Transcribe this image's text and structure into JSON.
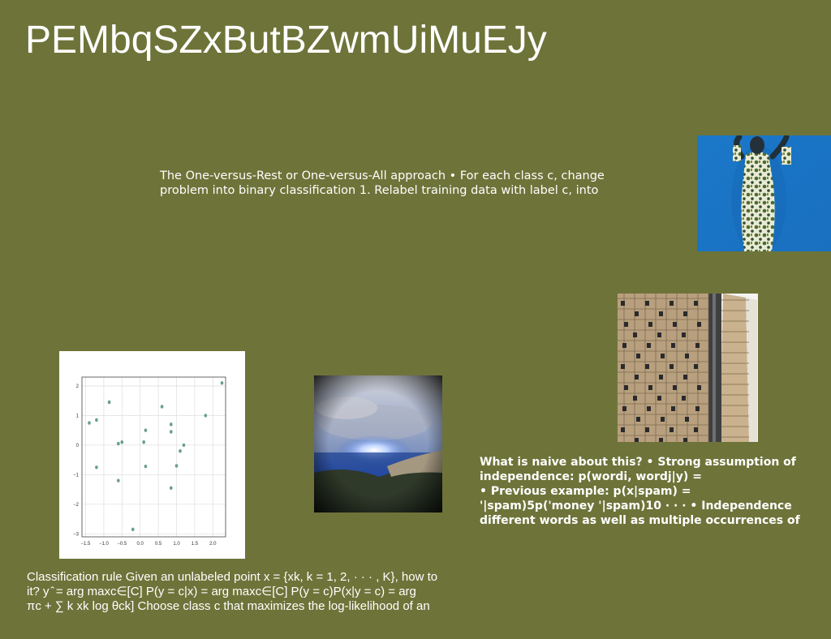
{
  "slide": {
    "title": "PEMbqSZxButBZwmUiMuEJy",
    "text_ovr": "The One-versus-Rest or One-versus-All approach • For each class c, change\nproblem into binary classification 1. Relabel training data with label c, into",
    "text_naive": "What is naive about this? • Strong assumption of\nindependence: p(wordi, wordj|y) =\n• Previous example: p(x|spam) =\n'|spam)5p('money '|spam)10 · · · • Independence\ndifferent words as well as multiple occurrences of",
    "text_rule": "Classification rule Given an unlabeled point x = {xk, k = 1, 2, · · · , K}, how to\nit? y ̂ = arg maxc∈[C] P(y = c|x) = arg maxc∈[C] P(y = c)P(x|y = c) = arg\nπc + ∑ k xk log θck] Choose class c that maximizes the log-likelihood of an"
  },
  "scatter": {
    "xticks": [
      "−1.5",
      "−1.0",
      "−0.5",
      "0.0",
      "0.5",
      "1.0",
      "1.5",
      "2.0"
    ],
    "yticks": [
      "2",
      "1",
      "0",
      "−1",
      "−2",
      "−3"
    ],
    "chart_data": {
      "type": "scatter",
      "xlim": [
        -1.6,
        2.35
      ],
      "ylim": [
        -3.1,
        2.3
      ],
      "grid": true,
      "points": [
        [
          -1.4,
          0.75
        ],
        [
          -1.2,
          0.85
        ],
        [
          -0.85,
          1.45
        ],
        [
          -1.2,
          -0.75
        ],
        [
          -0.6,
          0.05
        ],
        [
          -0.5,
          0.1
        ],
        [
          -0.6,
          -1.2
        ],
        [
          -0.2,
          -2.85
        ],
        [
          0.1,
          0.1
        ],
        [
          0.15,
          0.5
        ],
        [
          0.15,
          -0.72
        ],
        [
          0.6,
          1.3
        ],
        [
          0.85,
          0.7
        ],
        [
          0.85,
          0.45
        ],
        [
          0.85,
          -1.45
        ],
        [
          1.0,
          -0.7
        ],
        [
          1.1,
          -0.2
        ],
        [
          1.2,
          0.0
        ],
        [
          1.8,
          1.0
        ],
        [
          2.25,
          2.1
        ]
      ]
    }
  }
}
